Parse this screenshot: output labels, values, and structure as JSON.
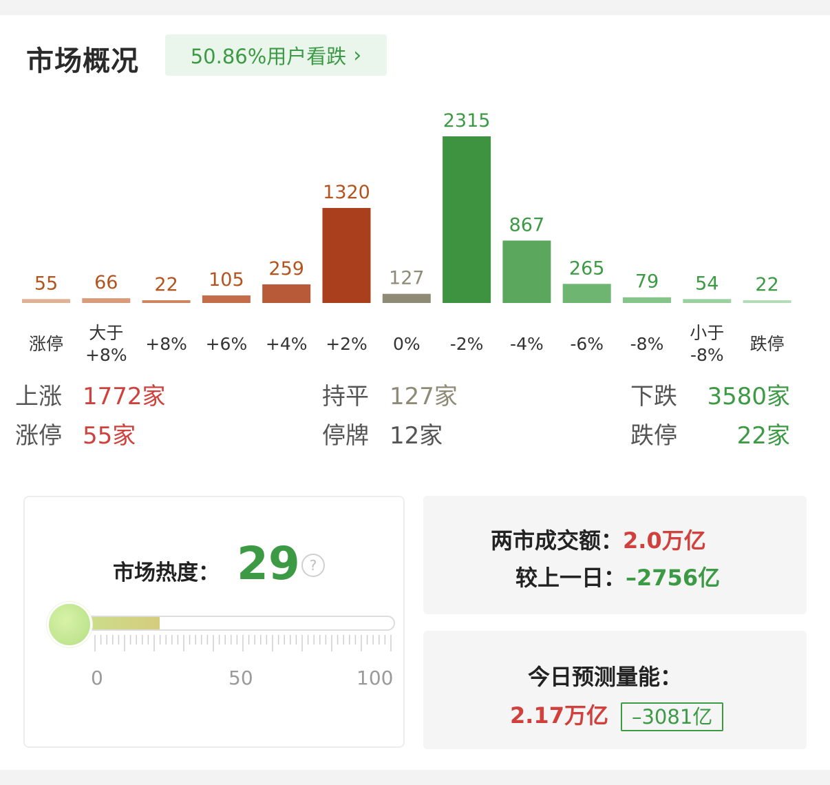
{
  "header": {
    "title": "市场概况",
    "sentiment": "50.86%用户看跌"
  },
  "chart_data": {
    "type": "bar",
    "categories": [
      "涨停",
      "大于\n+8%",
      "+8%",
      "+6%",
      "+4%",
      "+2%",
      "0%",
      "-2%",
      "-4%",
      "-6%",
      "-8%",
      "小于\n-8%",
      "跌停"
    ],
    "values": [
      55,
      66,
      22,
      105,
      259,
      1320,
      127,
      2315,
      867,
      265,
      79,
      54,
      22
    ],
    "colors": [
      "#e0b397",
      "#d99c7a",
      "#cf8561",
      "#c46d4a",
      "#b85a37",
      "#a93f1d",
      "#8e8a76",
      "#3d9340",
      "#5aa75d",
      "#6fb572",
      "#86c589",
      "#9bd09f",
      "#b3ddb6"
    ],
    "label_colors": [
      "#b5531f",
      "#b5531f",
      "#b5531f",
      "#b5531f",
      "#b5531f",
      "#b5531f",
      "#8e8a76",
      "#3c9a45",
      "#3c9a45",
      "#3c9a45",
      "#3c9a45",
      "#3c9a45",
      "#3c9a45"
    ]
  },
  "stats": {
    "rise_label": "上涨",
    "rise_value": "1772家",
    "limit_up_label": "涨停",
    "limit_up_value": "55家",
    "flat_label": "持平",
    "flat_value": "127家",
    "suspend_label": "停牌",
    "suspend_value": "12家",
    "fall_label": "下跌",
    "fall_value": "3580家",
    "limit_down_label": "跌停",
    "limit_down_value": "22家"
  },
  "heat": {
    "label": "市场热度：",
    "value": "29",
    "level": 29,
    "help": "?",
    "scale_0": "0",
    "scale_50": "50",
    "scale_100": "100"
  },
  "turnover": {
    "label": "两市成交额：",
    "value": "2.0万亿",
    "change_label": "较上一日：",
    "change_value": "–2756亿"
  },
  "forecast": {
    "label": "今日预测量能：",
    "value": "2.17万亿",
    "change": "–3081亿"
  }
}
